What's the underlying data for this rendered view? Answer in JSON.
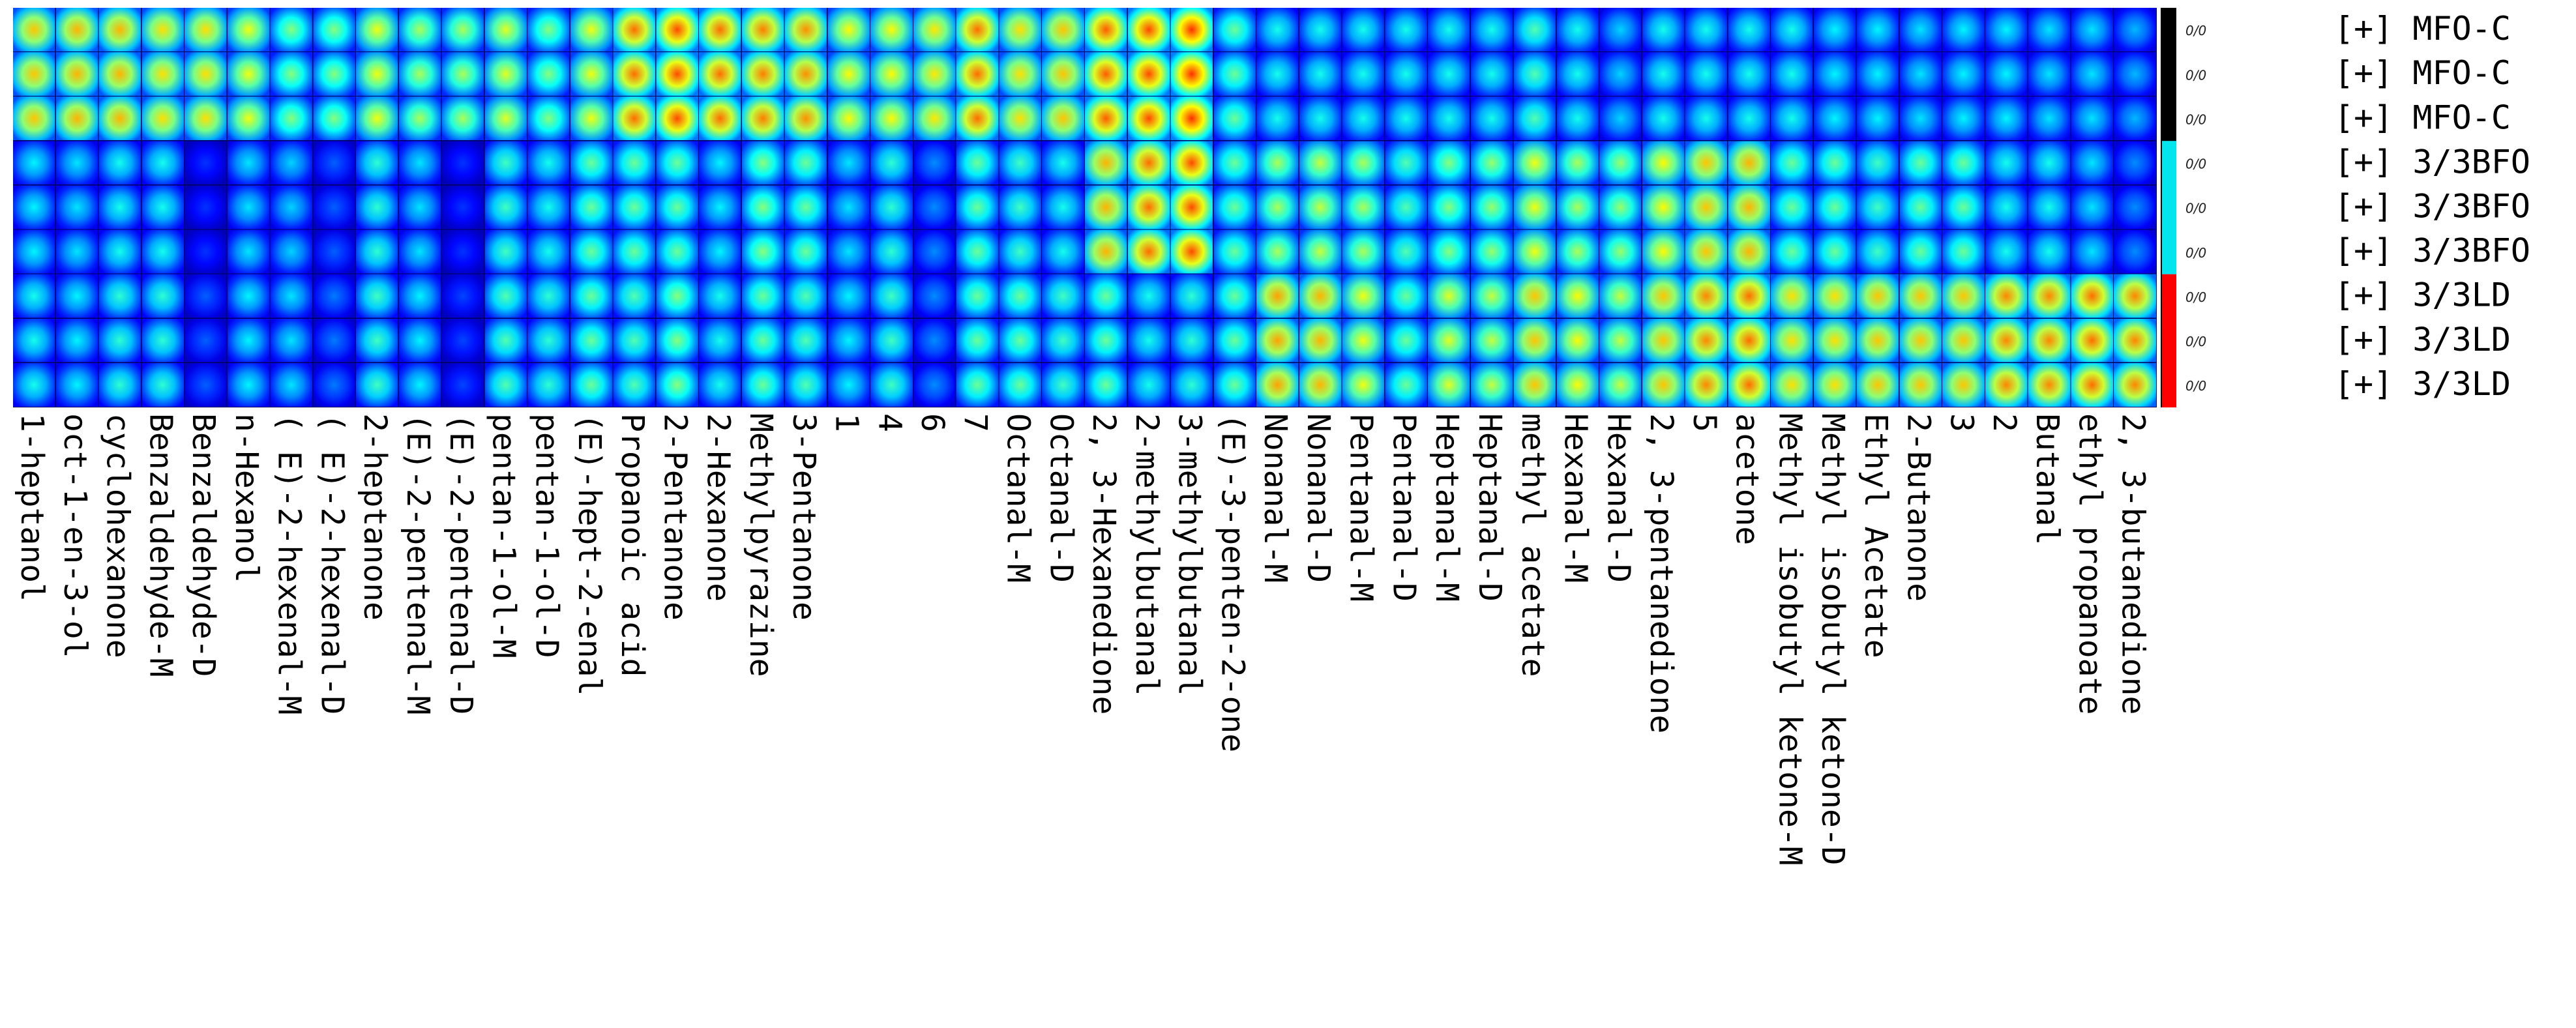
{
  "chart_data": {
    "type": "heatmap",
    "title": "",
    "xlabel": "",
    "ylabel": "",
    "columns": [
      "1-heptanol",
      "oct-1-en-3-ol",
      "cyclohexanone",
      "Benzaldehyde-M",
      "Benzaldehyde-D",
      "n-Hexanol",
      "( E)-2-hexenal-M",
      "( E)-2-hexenal-D",
      "2-heptanone",
      "(E)-2-pentenal-M",
      "(E)-2-pentenal-D",
      "pentan-1-ol-M",
      "pentan-1-ol-D",
      "(E)-hept-2-enal",
      "Propanoic acid",
      "2-Pentanone",
      "2-Hexanone",
      "Methylpyrazine",
      "3-Pentanone",
      "1",
      "4",
      "6",
      "7",
      "Octanal-M",
      "Octanal-D",
      "2, 3-Hexanedione",
      "2-methylbutanal",
      "3-methylbutanal",
      "(E)-3-penten-2-one",
      "Nonanal-M",
      "Nonanal-D",
      "Pentanal-M",
      "Pentanal-D",
      "Heptanal-M",
      "Heptanal-D",
      "methyl acetate",
      "Hexanal-M",
      "Hexanal-D",
      "2, 3-pentanedione",
      "5",
      "acetone",
      "Methyl isobutyl ketone-M",
      "Methyl isobutyl ketone-D",
      "Ethyl Acetate",
      "2-Butanone",
      "3",
      "2",
      "Butanal",
      "ethyl propanoate",
      "2, 3-butanedione"
    ],
    "rows": [
      "MFO-C",
      "MFO-C",
      "MFO-C",
      "3/3BFO",
      "3/3BFO",
      "3/3BFO",
      "3/3LD",
      "3/3LD",
      "3/3LD"
    ],
    "row_prefix": "[+]",
    "group_labels": [
      "0/0",
      "0/0",
      "0/0",
      "0/0",
      "0/0",
      "0/0",
      "0/0",
      "0/0",
      "0/0"
    ],
    "group_colors": [
      "#000000",
      "#00e5ee",
      "#ff0000"
    ],
    "value_range": [
      0,
      1
    ],
    "colormap": [
      "#00007f",
      "#0000ff",
      "#0080ff",
      "#00ffff",
      "#80ff80",
      "#ffff00",
      "#ff8000",
      "#ff0000"
    ],
    "values": [
      [
        0.78,
        0.8,
        0.8,
        0.75,
        0.75,
        0.7,
        0.58,
        0.58,
        0.7,
        0.62,
        0.62,
        0.68,
        0.58,
        0.7,
        0.88,
        0.92,
        0.88,
        0.86,
        0.84,
        0.72,
        0.72,
        0.74,
        0.88,
        0.75,
        0.78,
        0.9,
        0.92,
        0.95,
        0.55,
        0.45,
        0.45,
        0.45,
        0.45,
        0.45,
        0.45,
        0.52,
        0.45,
        0.38,
        0.45,
        0.45,
        0.45,
        0.45,
        0.42,
        0.42,
        0.4,
        0.42,
        0.42,
        0.4,
        0.4,
        0.35
      ],
      [
        0.78,
        0.8,
        0.8,
        0.75,
        0.75,
        0.7,
        0.58,
        0.58,
        0.7,
        0.62,
        0.62,
        0.68,
        0.58,
        0.7,
        0.88,
        0.92,
        0.88,
        0.86,
        0.84,
        0.72,
        0.72,
        0.74,
        0.88,
        0.75,
        0.78,
        0.9,
        0.92,
        0.95,
        0.55,
        0.45,
        0.45,
        0.45,
        0.45,
        0.45,
        0.45,
        0.52,
        0.45,
        0.38,
        0.45,
        0.45,
        0.45,
        0.45,
        0.42,
        0.42,
        0.4,
        0.42,
        0.42,
        0.4,
        0.4,
        0.35
      ],
      [
        0.78,
        0.8,
        0.8,
        0.75,
        0.75,
        0.7,
        0.58,
        0.58,
        0.7,
        0.62,
        0.62,
        0.68,
        0.58,
        0.7,
        0.88,
        0.92,
        0.88,
        0.86,
        0.84,
        0.72,
        0.72,
        0.74,
        0.88,
        0.75,
        0.78,
        0.9,
        0.92,
        0.95,
        0.55,
        0.45,
        0.45,
        0.45,
        0.45,
        0.45,
        0.45,
        0.52,
        0.45,
        0.38,
        0.45,
        0.45,
        0.45,
        0.45,
        0.42,
        0.42,
        0.4,
        0.42,
        0.42,
        0.4,
        0.4,
        0.35
      ],
      [
        0.42,
        0.4,
        0.45,
        0.45,
        0.2,
        0.4,
        0.38,
        0.25,
        0.48,
        0.4,
        0.2,
        0.5,
        0.45,
        0.55,
        0.55,
        0.55,
        0.42,
        0.58,
        0.55,
        0.4,
        0.48,
        0.3,
        0.55,
        0.5,
        0.45,
        0.8,
        0.88,
        0.92,
        0.55,
        0.62,
        0.65,
        0.62,
        0.52,
        0.58,
        0.6,
        0.7,
        0.62,
        0.6,
        0.72,
        0.78,
        0.8,
        0.55,
        0.55,
        0.5,
        0.55,
        0.55,
        0.45,
        0.45,
        0.4,
        0.3
      ],
      [
        0.42,
        0.4,
        0.45,
        0.45,
        0.2,
        0.4,
        0.38,
        0.25,
        0.48,
        0.4,
        0.2,
        0.5,
        0.45,
        0.55,
        0.55,
        0.55,
        0.42,
        0.58,
        0.55,
        0.4,
        0.48,
        0.3,
        0.55,
        0.5,
        0.45,
        0.8,
        0.88,
        0.92,
        0.55,
        0.62,
        0.65,
        0.62,
        0.52,
        0.58,
        0.6,
        0.7,
        0.62,
        0.6,
        0.72,
        0.78,
        0.8,
        0.55,
        0.55,
        0.5,
        0.55,
        0.55,
        0.45,
        0.45,
        0.4,
        0.3
      ],
      [
        0.42,
        0.4,
        0.45,
        0.45,
        0.2,
        0.4,
        0.38,
        0.25,
        0.48,
        0.4,
        0.2,
        0.5,
        0.45,
        0.55,
        0.55,
        0.55,
        0.42,
        0.58,
        0.55,
        0.4,
        0.48,
        0.3,
        0.55,
        0.5,
        0.45,
        0.8,
        0.88,
        0.92,
        0.55,
        0.62,
        0.65,
        0.62,
        0.52,
        0.58,
        0.6,
        0.7,
        0.62,
        0.6,
        0.72,
        0.78,
        0.8,
        0.55,
        0.55,
        0.5,
        0.55,
        0.55,
        0.45,
        0.45,
        0.4,
        0.3
      ],
      [
        0.45,
        0.42,
        0.48,
        0.48,
        0.25,
        0.42,
        0.4,
        0.28,
        0.5,
        0.42,
        0.22,
        0.52,
        0.48,
        0.55,
        0.52,
        0.58,
        0.45,
        0.55,
        0.52,
        0.42,
        0.5,
        0.3,
        0.55,
        0.55,
        0.5,
        0.55,
        0.45,
        0.48,
        0.55,
        0.82,
        0.8,
        0.7,
        0.55,
        0.68,
        0.65,
        0.78,
        0.72,
        0.65,
        0.78,
        0.85,
        0.88,
        0.75,
        0.75,
        0.78,
        0.78,
        0.78,
        0.85,
        0.85,
        0.88,
        0.85
      ],
      [
        0.45,
        0.42,
        0.48,
        0.48,
        0.25,
        0.42,
        0.4,
        0.28,
        0.5,
        0.42,
        0.22,
        0.52,
        0.48,
        0.55,
        0.52,
        0.58,
        0.45,
        0.55,
        0.52,
        0.42,
        0.5,
        0.3,
        0.55,
        0.55,
        0.5,
        0.55,
        0.45,
        0.48,
        0.55,
        0.82,
        0.8,
        0.7,
        0.55,
        0.68,
        0.65,
        0.78,
        0.72,
        0.65,
        0.78,
        0.85,
        0.88,
        0.75,
        0.75,
        0.78,
        0.78,
        0.78,
        0.85,
        0.85,
        0.88,
        0.85
      ],
      [
        0.45,
        0.42,
        0.48,
        0.48,
        0.25,
        0.42,
        0.4,
        0.28,
        0.5,
        0.42,
        0.22,
        0.52,
        0.48,
        0.55,
        0.52,
        0.58,
        0.45,
        0.55,
        0.52,
        0.42,
        0.5,
        0.3,
        0.55,
        0.55,
        0.5,
        0.55,
        0.45,
        0.48,
        0.55,
        0.82,
        0.8,
        0.7,
        0.55,
        0.68,
        0.65,
        0.78,
        0.72,
        0.65,
        0.78,
        0.85,
        0.88,
        0.75,
        0.75,
        0.78,
        0.78,
        0.78,
        0.85,
        0.85,
        0.88,
        0.85
      ]
    ]
  }
}
